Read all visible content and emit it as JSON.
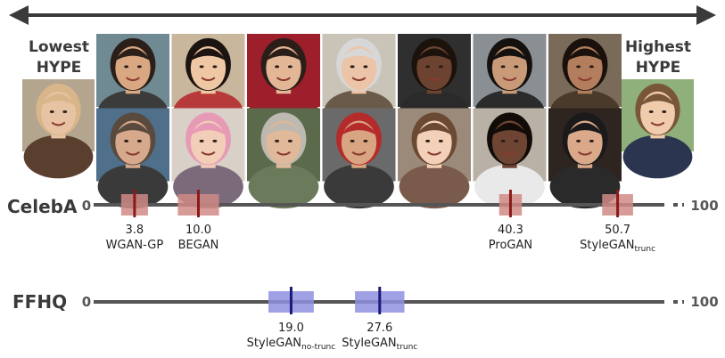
{
  "labels": {
    "lowest_line1": "Lowest",
    "lowest_line2": "HYPE",
    "highest_line1": "Highest",
    "highest_line2": "HYPE"
  },
  "chart_data": [
    {
      "type": "scatter",
      "name": "CelebA",
      "xlim": [
        0,
        100
      ],
      "axis_start_label": "0",
      "axis_end_label": "100",
      "mark_color": "#8b1a1a",
      "band_color": "#d08a86",
      "points": [
        {
          "value": 3.8,
          "label": "3.8",
          "model": "WGAN-GP",
          "sub": "",
          "ci": [
            2.5,
            5.1
          ]
        },
        {
          "value": 10.0,
          "label": "10.0",
          "model": "BEGAN",
          "sub": "",
          "ci": [
            8.0,
            12.0
          ]
        },
        {
          "value": 40.3,
          "label": "40.3",
          "model": "ProGAN",
          "sub": "",
          "ci": [
            39.2,
            41.4
          ]
        },
        {
          "value": 50.7,
          "label": "50.7",
          "model": "StyleGAN",
          "sub": "trunc",
          "ci": [
            49.2,
            52.2
          ]
        }
      ]
    },
    {
      "type": "scatter",
      "name": "FFHQ",
      "xlim": [
        0,
        100
      ],
      "axis_start_label": "0",
      "axis_end_label": "100",
      "mark_color": "#1a1a7a",
      "band_color": "#8f8fe0",
      "points": [
        {
          "value": 19.0,
          "label": "19.0",
          "model": "StyleGAN",
          "sub": "no-trunc",
          "ci": [
            16.8,
            21.2
          ]
        },
        {
          "value": 27.6,
          "label": "27.6",
          "model": "StyleGAN",
          "sub": "trunc",
          "ci": [
            25.2,
            30.0
          ]
        }
      ]
    }
  ],
  "faces": {
    "left": {
      "skin": "#e7c3a3",
      "hair": "#d9b58a",
      "bg": "#b3a58e",
      "shirt": "#5a3e2e"
    },
    "right": {
      "skin": "#f0ccad",
      "hair": "#7a5638",
      "bg": "#8fb07a",
      "shirt": "#2b3550"
    },
    "grid": [
      [
        {
          "skin": "#d9a883",
          "hair": "#2a1f19",
          "bg": "#6f8a93",
          "shirt": "#3b3b3b"
        },
        {
          "skin": "#f0c7a5",
          "hair": "#1c1410",
          "bg": "#c8b79d",
          "shirt": "#b73a3a"
        },
        {
          "skin": "#e3b796",
          "hair": "#2b1e18",
          "bg": "#9c1f2b",
          "shirt": "#9c1f2b"
        },
        {
          "skin": "#ecc4a8",
          "hair": "#d7d7d7",
          "bg": "#c9c3b8",
          "shirt": "#6a5a4a"
        },
        {
          "skin": "#6b4330",
          "hair": "#1c120c",
          "bg": "#2f2f2f",
          "shirt": "#2a2a2a"
        },
        {
          "skin": "#c89a78",
          "hair": "#15110e",
          "bg": "#8a8f94",
          "shirt": "#2b2b2b"
        },
        {
          "skin": "#b27e5e",
          "hair": "#1a110c",
          "bg": "#7a6a5a",
          "shirt": "#4a3a2a"
        }
      ],
      [
        {
          "skin": "#d6a98c",
          "hair": "#5a4a3e",
          "bg": "#4f6f8a",
          "shirt": "#3a3a3a"
        },
        {
          "skin": "#f2cdb7",
          "hair": "#e79ab5",
          "bg": "#d9d0c8",
          "shirt": "#7a6a7a"
        },
        {
          "skin": "#e0b89a",
          "hair": "#bdb8b0",
          "bg": "#5a6a4a",
          "shirt": "#6a7a5a"
        },
        {
          "skin": "#d8a482",
          "hair": "#b52a2a",
          "bg": "#6a6a6a",
          "shirt": "#3a3a3a"
        },
        {
          "skin": "#f3d0b8",
          "hair": "#6a4a32",
          "bg": "#9b8a7a",
          "shirt": "#7a5a4a"
        },
        {
          "skin": "#6e4533",
          "hair": "#120c09",
          "bg": "#b9b1a6",
          "shirt": "#e9e9e9"
        },
        {
          "skin": "#d9a98a",
          "hair": "#1a1a1a",
          "bg": "#2e2420",
          "shirt": "#2a2a2a"
        }
      ]
    ]
  }
}
